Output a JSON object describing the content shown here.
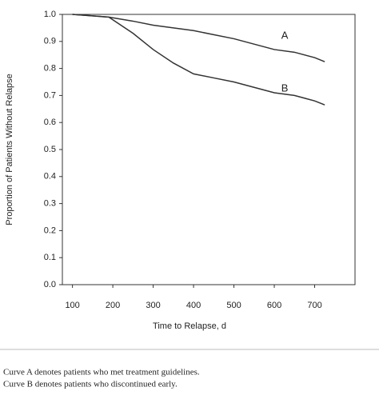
{
  "chart_data": {
    "type": "line",
    "xlabel": "Time to Relapse, d",
    "ylabel": "Proportion of Patients Without Relapse",
    "xlim": [
      75,
      800
    ],
    "ylim": [
      0,
      1.0
    ],
    "xticks": [
      100,
      200,
      300,
      400,
      500,
      600,
      700
    ],
    "yticks": [
      {
        "value": 0,
        "label": "0.0"
      },
      0.1,
      0.2,
      0.3,
      0.4,
      0.5,
      0.6,
      0.7,
      0.8,
      0.9,
      {
        "value": 1,
        "label": "1.0"
      }
    ],
    "grid": false,
    "x": [
      100,
      190,
      250,
      300,
      350,
      400,
      450,
      500,
      550,
      600,
      650,
      700,
      725
    ],
    "series": [
      {
        "name": "A",
        "color": "#333333",
        "values": [
          1.0,
          0.99,
          0.975,
          0.96,
          0.95,
          0.94,
          0.925,
          0.91,
          0.89,
          0.87,
          0.86,
          0.84,
          0.825
        ]
      },
      {
        "name": "B",
        "color": "#333333",
        "values": [
          1.0,
          0.99,
          0.93,
          0.87,
          0.82,
          0.78,
          0.765,
          0.75,
          0.73,
          0.71,
          0.7,
          0.68,
          0.665
        ]
      }
    ],
    "notes": [
      "Curve A denotes patients who met treatment guidelines.",
      "Curve B denotes patients who discontinued early."
    ]
  }
}
